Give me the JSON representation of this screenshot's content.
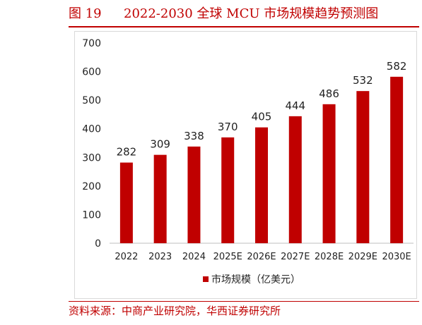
{
  "figure": {
    "number": "图 19",
    "title": "2022-2030 全球 MCU 市场规模趋势预测图"
  },
  "source": "资料来源：中商产业研究院，华西证券研究所",
  "colors": {
    "accent": "#c00000",
    "bar": "#c00000",
    "axis_text": "#222222"
  },
  "chart_data": {
    "type": "bar",
    "categories": [
      "2022",
      "2023",
      "2024",
      "2025E",
      "2026E",
      "2027E",
      "2028E",
      "2029E",
      "2030E"
    ],
    "series": [
      {
        "name": "市场规模（亿美元）",
        "values": [
          282,
          309,
          338,
          370,
          405,
          444,
          486,
          532,
          582
        ]
      }
    ],
    "title": "2022-2030 全球 MCU 市场规模趋势预测图",
    "xlabel": "",
    "ylabel": "",
    "ylim": [
      0,
      700
    ],
    "yticks": [
      0,
      100,
      200,
      300,
      400,
      500,
      600,
      700
    ],
    "grid": false,
    "legend": "bottom-center",
    "data_labels": true
  }
}
